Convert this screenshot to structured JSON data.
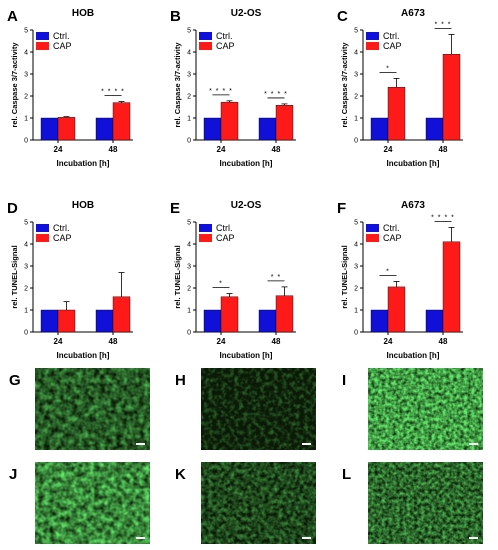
{
  "colors": {
    "ctrl": "#1010d8",
    "cap": "#ff1a1a",
    "micro_bg": "#0b1a06",
    "micro_fg": "#39c224",
    "scale_bar": "#ffffff"
  },
  "chart_data": [
    {
      "label": "A",
      "type": "bar",
      "title": "HOB",
      "ylabel": "rel. Caspase 3/7-activity",
      "xlabel": "Incubation [h]",
      "categories": [
        "24",
        "48"
      ],
      "ylim": [
        0,
        5
      ],
      "yticks": [
        "0",
        "1",
        "2",
        "3",
        "4",
        "5"
      ],
      "legend": "top-left",
      "series": [
        {
          "name": "Ctrl.",
          "values": [
            1,
            1
          ],
          "errors": [
            0,
            0
          ]
        },
        {
          "name": "CAP",
          "values": [
            1.03,
            1.7
          ],
          "errors": [
            0.03,
            0.05
          ]
        }
      ],
      "significance": [
        {
          "category": "48",
          "stars": "* * * *"
        }
      ]
    },
    {
      "label": "B",
      "type": "bar",
      "title": "U2-OS",
      "ylabel": "rel. Caspase 3/7-activity",
      "xlabel": "Incubation [h]",
      "categories": [
        "24",
        "48"
      ],
      "ylim": [
        0,
        5
      ],
      "yticks": [
        "0",
        "1",
        "2",
        "3",
        "4",
        "5"
      ],
      "legend": "top-left",
      "series": [
        {
          "name": "Ctrl.",
          "values": [
            1,
            1
          ],
          "errors": [
            0,
            0
          ]
        },
        {
          "name": "CAP",
          "values": [
            1.72,
            1.58
          ],
          "errors": [
            0.06,
            0.06
          ]
        }
      ],
      "significance": [
        {
          "category": "24",
          "stars": "* * * *"
        },
        {
          "category": "48",
          "stars": "* * * *"
        }
      ]
    },
    {
      "label": "C",
      "type": "bar",
      "title": "A673",
      "ylabel": "rel. Caspase 3/7-activity",
      "xlabel": "Incubation [h]",
      "categories": [
        "24",
        "48"
      ],
      "ylim": [
        0,
        5
      ],
      "yticks": [
        "0",
        "1",
        "2",
        "3",
        "4",
        "5"
      ],
      "legend": "top-left",
      "series": [
        {
          "name": "Ctrl.",
          "values": [
            1,
            1
          ],
          "errors": [
            0,
            0
          ]
        },
        {
          "name": "CAP",
          "values": [
            2.4,
            3.9
          ],
          "errors": [
            0.4,
            0.9
          ]
        }
      ],
      "significance": [
        {
          "category": "24",
          "stars": "*"
        },
        {
          "category": "48",
          "stars": "* * *"
        }
      ]
    },
    {
      "label": "D",
      "type": "bar",
      "title": "HOB",
      "ylabel": "rel. TUNEL-Signal",
      "xlabel": "Incubation [h]",
      "categories": [
        "24",
        "48"
      ],
      "ylim": [
        0,
        5
      ],
      "yticks": [
        "0",
        "1",
        "2",
        "3",
        "4",
        "5"
      ],
      "legend": "top-left",
      "series": [
        {
          "name": "Ctrl.",
          "values": [
            1,
            1
          ],
          "errors": [
            0,
            0
          ]
        },
        {
          "name": "CAP",
          "values": [
            1.0,
            1.6
          ],
          "errors": [
            0.38,
            1.1
          ]
        }
      ],
      "significance": []
    },
    {
      "label": "E",
      "type": "bar",
      "title": "U2-OS",
      "ylabel": "rel. TUNEL-Signal",
      "xlabel": "Incubation [h]",
      "categories": [
        "24",
        "48"
      ],
      "ylim": [
        0,
        5
      ],
      "yticks": [
        "0",
        "1",
        "2",
        "3",
        "4",
        "5"
      ],
      "legend": "top-left",
      "series": [
        {
          "name": "Ctrl.",
          "values": [
            1,
            1
          ],
          "errors": [
            0,
            0
          ]
        },
        {
          "name": "CAP",
          "values": [
            1.6,
            1.65
          ],
          "errors": [
            0.15,
            0.4
          ]
        }
      ],
      "significance": [
        {
          "category": "24",
          "stars": "*"
        },
        {
          "category": "48",
          "stars": "* *"
        }
      ]
    },
    {
      "label": "F",
      "type": "bar",
      "title": "A673",
      "ylabel": "rel. TUNEL-Signal",
      "xlabel": "Incubation [h]",
      "categories": [
        "24",
        "48"
      ],
      "ylim": [
        0,
        5
      ],
      "yticks": [
        "0",
        "1",
        "2",
        "3",
        "4",
        "5"
      ],
      "legend": "top-left",
      "series": [
        {
          "name": "Ctrl.",
          "values": [
            1,
            1
          ],
          "errors": [
            0,
            0
          ]
        },
        {
          "name": "CAP",
          "values": [
            2.05,
            4.1
          ],
          "errors": [
            0.25,
            0.65
          ]
        }
      ],
      "significance": [
        {
          "category": "24",
          "stars": "*"
        },
        {
          "category": "48",
          "stars": "* * * *"
        }
      ]
    }
  ],
  "micrographs": [
    {
      "label": "G",
      "intensity": 0.55
    },
    {
      "label": "H",
      "intensity": 0.3
    },
    {
      "label": "I",
      "intensity": 0.85
    },
    {
      "label": "J",
      "intensity": 0.75
    },
    {
      "label": "K",
      "intensity": 0.45
    },
    {
      "label": "L",
      "intensity": 0.6
    }
  ]
}
